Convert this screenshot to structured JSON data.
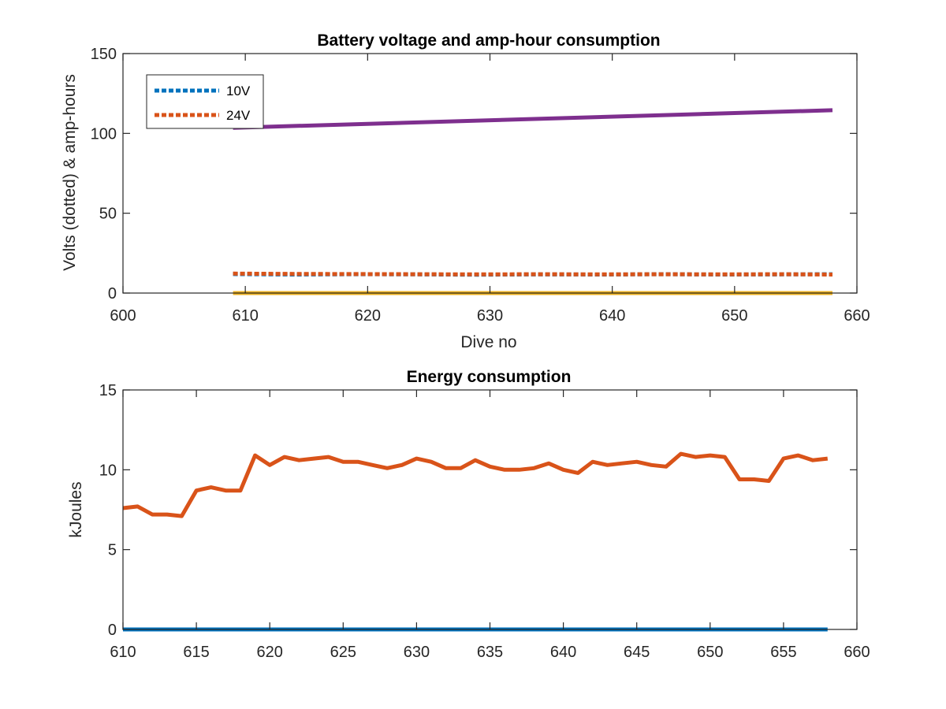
{
  "chart_data": [
    {
      "type": "line",
      "title": "Battery voltage and amp-hour consumption",
      "xlabel": "Dive no",
      "ylabel": "Volts (dotted) & amp-hours",
      "xlim": [
        600,
        660
      ],
      "ylim": [
        0,
        150
      ],
      "xticks": [
        "600",
        "610",
        "620",
        "630",
        "640",
        "650",
        "660"
      ],
      "yticks": [
        "0",
        "50",
        "100",
        "150"
      ],
      "grid": false,
      "legend_position": "top-left",
      "series": [
        {
          "name": "10V",
          "color": "#0072BD",
          "style": "dotted",
          "x": [
            609,
            614,
            619,
            624,
            629,
            634,
            639,
            644,
            649,
            654,
            658
          ],
          "y": [
            11.9,
            11.6,
            11.8,
            11.7,
            11.5,
            11.7,
            11.6,
            11.8,
            11.6,
            11.7,
            11.8
          ]
        },
        {
          "name": "24V",
          "color": "#D95319",
          "style": "dotted",
          "x": [
            609,
            614,
            619,
            624,
            629,
            634,
            639,
            644,
            649,
            654,
            658
          ],
          "y": [
            12.2,
            12.0,
            11.9,
            11.8,
            11.7,
            11.8,
            11.7,
            11.8,
            11.7,
            11.8,
            11.6
          ]
        },
        {
          "color": "#7E2F8E",
          "style": "solid",
          "x": [
            609,
            658
          ],
          "y": [
            103.5,
            114.5
          ]
        },
        {
          "color": "#EDB120",
          "style": "solid",
          "x": [
            609,
            658
          ],
          "y": [
            0,
            0
          ]
        }
      ]
    },
    {
      "type": "line",
      "title": "Energy consumption",
      "xlabel": "",
      "ylabel": "kJoules",
      "xlim": [
        610,
        660
      ],
      "ylim": [
        0,
        15
      ],
      "xticks": [
        "610",
        "615",
        "620",
        "625",
        "630",
        "635",
        "640",
        "645",
        "650",
        "655",
        "660"
      ],
      "yticks": [
        "0",
        "5",
        "10",
        "15"
      ],
      "grid": false,
      "series": [
        {
          "color": "#0072BD",
          "style": "solid",
          "x": [
            610,
            658
          ],
          "y": [
            0,
            0
          ]
        },
        {
          "color": "#D95319",
          "style": "solid",
          "x": [
            610,
            611,
            612,
            613,
            614,
            615,
            616,
            617,
            618,
            619,
            620,
            621,
            622,
            623,
            624,
            625,
            626,
            627,
            628,
            629,
            630,
            631,
            632,
            633,
            634,
            635,
            636,
            637,
            638,
            639,
            640,
            641,
            642,
            643,
            644,
            645,
            646,
            647,
            648,
            649,
            650,
            651,
            652,
            653,
            654,
            655,
            656,
            657,
            658
          ],
          "y": [
            7.6,
            7.7,
            7.2,
            7.2,
            7.1,
            8.7,
            8.9,
            8.7,
            8.7,
            10.9,
            10.3,
            10.8,
            10.6,
            10.7,
            10.8,
            10.5,
            10.5,
            10.3,
            10.1,
            10.3,
            10.7,
            10.5,
            10.1,
            10.1,
            10.6,
            10.2,
            10.0,
            10.0,
            10.1,
            10.4,
            10.0,
            9.8,
            10.5,
            10.3,
            10.4,
            10.5,
            10.3,
            10.2,
            11.0,
            10.8,
            10.9,
            10.8,
            9.4,
            9.4,
            9.3,
            10.7,
            10.9,
            10.6,
            10.7
          ]
        }
      ]
    }
  ]
}
